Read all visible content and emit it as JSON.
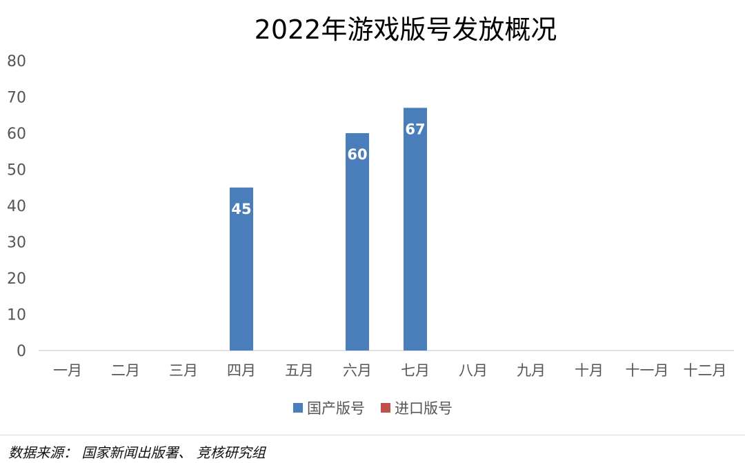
{
  "chart_data": {
    "type": "bar",
    "title": "2022年游戏版号发放概况",
    "categories": [
      "一月",
      "二月",
      "三月",
      "四月",
      "五月",
      "六月",
      "七月",
      "八月",
      "九月",
      "十月",
      "十一月",
      "十二月"
    ],
    "series": [
      {
        "name": "国产版号",
        "color": "#4a7ebb",
        "values": [
          0,
          0,
          0,
          45,
          0,
          60,
          67,
          0,
          0,
          0,
          0,
          0
        ],
        "data_labels": [
          "",
          "",
          "",
          "45",
          "",
          "60",
          "67",
          "",
          "",
          "",
          "",
          ""
        ]
      },
      {
        "name": "进口版号",
        "color": "#c0504d",
        "values": [
          0,
          0,
          0,
          0,
          0,
          0,
          0,
          0,
          0,
          0,
          0,
          0
        ]
      }
    ],
    "ylim": [
      0,
      80
    ],
    "yticks": [
      "0",
      "10",
      "20",
      "30",
      "40",
      "50",
      "60",
      "70",
      "80"
    ],
    "grid": false,
    "legend_position": "bottom"
  },
  "source": "数据来源： 国家新闻出版署、 竞核研究组"
}
